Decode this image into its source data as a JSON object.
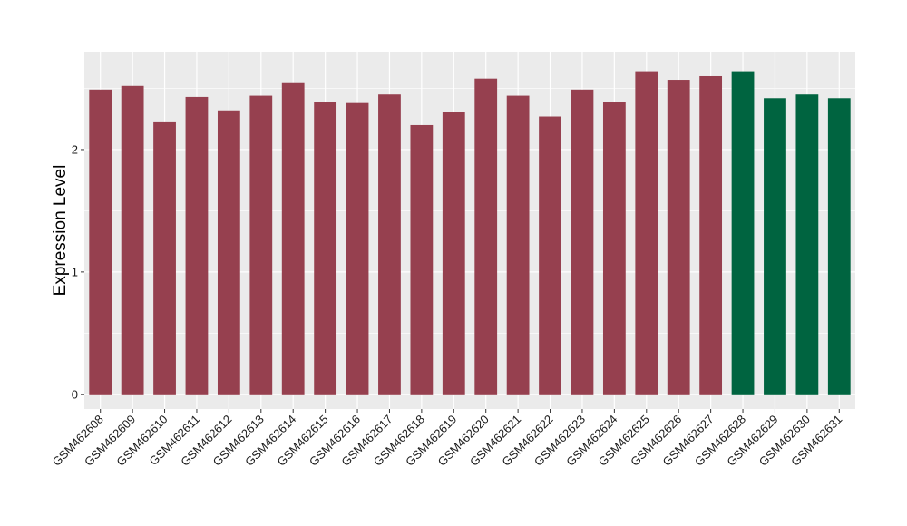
{
  "chart_data": {
    "type": "bar",
    "title": "",
    "xlabel": "",
    "ylabel": "Expression Level",
    "ylim": [
      -0.12,
      2.8
    ],
    "yticks": [
      0,
      1,
      2
    ],
    "grid": true,
    "legend": "none",
    "categories": [
      "GSM462608",
      "GSM462609",
      "GSM462610",
      "GSM462611",
      "GSM462612",
      "GSM462613",
      "GSM462614",
      "GSM462615",
      "GSM462616",
      "GSM462617",
      "GSM462618",
      "GSM462619",
      "GSM462620",
      "GSM462621",
      "GSM462622",
      "GSM462623",
      "GSM462624",
      "GSM462625",
      "GSM462626",
      "GSM462627",
      "GSM462628",
      "GSM462629",
      "GSM462630",
      "GSM462631"
    ],
    "values": [
      2.49,
      2.52,
      2.23,
      2.43,
      2.32,
      2.44,
      2.55,
      2.39,
      2.38,
      2.45,
      2.2,
      2.31,
      2.58,
      2.44,
      2.27,
      2.49,
      2.39,
      2.64,
      2.57,
      2.6,
      2.64,
      2.42,
      2.45,
      2.42
    ],
    "colors": [
      "#96404F",
      "#96404F",
      "#96404F",
      "#96404F",
      "#96404F",
      "#96404F",
      "#96404F",
      "#96404F",
      "#96404F",
      "#96404F",
      "#96404F",
      "#96404F",
      "#96404F",
      "#96404F",
      "#96404F",
      "#96404F",
      "#96404F",
      "#96404F",
      "#96404F",
      "#96404F",
      "#006440",
      "#006440",
      "#006440",
      "#006440"
    ],
    "panel_background": "#EBEBEB",
    "grid_color": "#FFFFFF"
  }
}
